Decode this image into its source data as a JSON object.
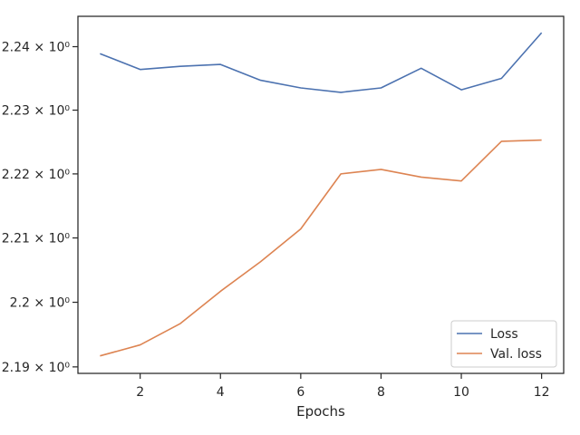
{
  "chart_data": {
    "type": "line",
    "title": "",
    "xlabel": "Epochs",
    "ylabel": "",
    "x": [
      1,
      2,
      3,
      4,
      5,
      6,
      7,
      8,
      9,
      10,
      11,
      12
    ],
    "xlim": [
      0.45,
      12.55
    ],
    "ylim": [
      2.189,
      2.2448
    ],
    "y_scale": "log",
    "grid": false,
    "legend_position": "lower right",
    "xticks": [
      2,
      4,
      6,
      8,
      10,
      12
    ],
    "xtick_labels": [
      "2",
      "4",
      "6",
      "8",
      "10",
      "12"
    ],
    "yticks": [
      2.19,
      2.2,
      2.21,
      2.22,
      2.23,
      2.24
    ],
    "ytick_labels": [
      "2.19 × 10⁰",
      "2.2 × 10⁰",
      "2.21 × 10⁰",
      "2.22 × 10⁰",
      "2.23 × 10⁰",
      "2.24 × 10⁰"
    ],
    "series": [
      {
        "name": "Loss",
        "color": "#4c72b0",
        "values": [
          2.2389,
          2.2364,
          2.2369,
          2.2372,
          2.2347,
          2.2335,
          2.2328,
          2.2335,
          2.2366,
          2.2332,
          2.235,
          2.2422
        ]
      },
      {
        "name": "Val. loss",
        "color": "#dd8452",
        "values": [
          2.1917,
          2.1934,
          2.1967,
          2.2017,
          2.2063,
          2.2114,
          2.22,
          2.2207,
          2.2195,
          2.2189,
          2.2251,
          2.2253
        ]
      }
    ]
  }
}
